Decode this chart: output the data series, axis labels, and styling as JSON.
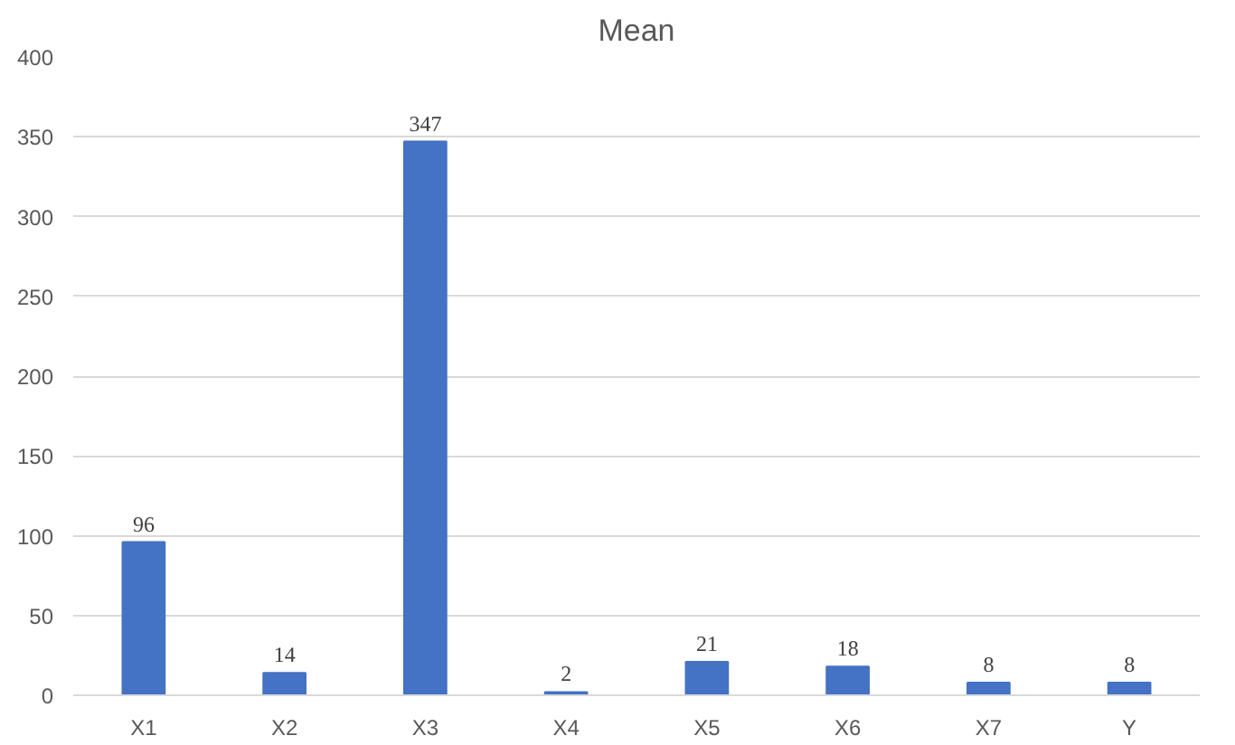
{
  "chart_data": {
    "type": "bar",
    "title": "Mean",
    "categories": [
      "X1",
      "X2",
      "X3",
      "X4",
      "X5",
      "X6",
      "X7",
      "Y"
    ],
    "values": [
      96,
      14,
      347,
      2,
      21,
      18,
      8,
      8
    ],
    "color": "#4472c4",
    "ylim": [
      0,
      400
    ],
    "yticks": [
      0,
      50,
      100,
      150,
      200,
      250,
      300,
      350,
      400
    ],
    "grid": "y",
    "data_labels": true
  }
}
